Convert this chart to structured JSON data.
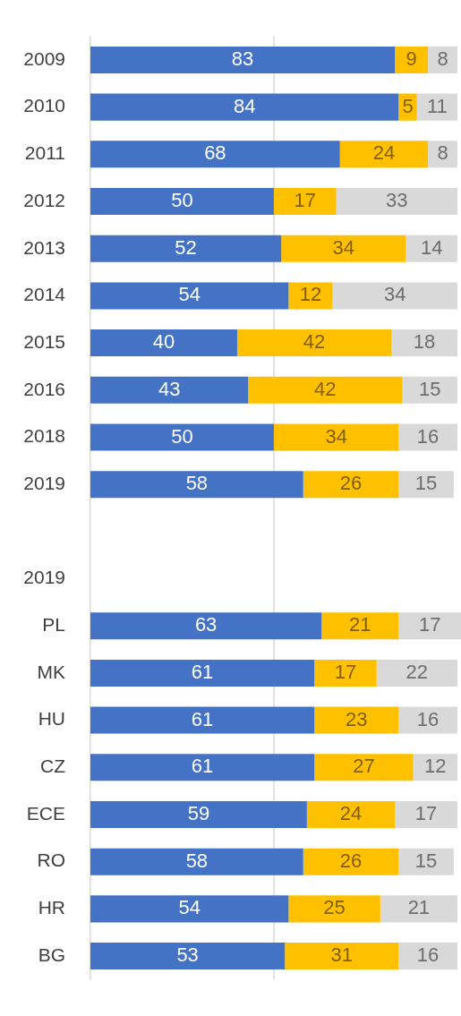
{
  "chart_data": {
    "type": "bar",
    "orientation": "horizontal",
    "stacked": true,
    "categories": [
      "2009",
      "2010",
      "2011",
      "2012",
      "2013",
      "2014",
      "2015",
      "2016",
      "2018",
      "2019",
      null,
      "2019",
      "PL",
      "MK",
      "HU",
      "CZ",
      "ECE",
      "RO",
      "HR",
      "BG"
    ],
    "series": [
      {
        "color": "#4472c4",
        "values": [
          83,
          84,
          68,
          50,
          52,
          54,
          40,
          43,
          50,
          58,
          null,
          null,
          63,
          61,
          61,
          61,
          59,
          58,
          54,
          53
        ]
      },
      {
        "color": "#ffc000",
        "values": [
          9,
          5,
          24,
          17,
          34,
          12,
          42,
          42,
          34,
          26,
          null,
          null,
          21,
          17,
          23,
          27,
          24,
          26,
          25,
          31
        ]
      },
      {
        "color": "#d9d9d9",
        "values": [
          8,
          11,
          8,
          33,
          14,
          34,
          18,
          15,
          16,
          15,
          null,
          null,
          17,
          22,
          16,
          12,
          17,
          15,
          21,
          16
        ]
      }
    ],
    "xlim": [
      0,
      101
    ],
    "ref_lines": [
      {
        "axis": "x",
        "value": 50,
        "color": "#d9d9d9"
      }
    ],
    "tick_labels": "y",
    "data_labels": true,
    "legend": false
  }
}
